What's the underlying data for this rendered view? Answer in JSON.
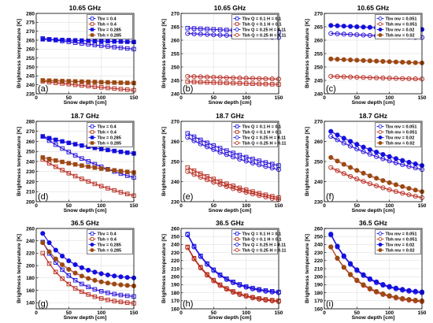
{
  "colors": {
    "tbv": "#1010e0",
    "tbh": "#b02c12",
    "tbh2": "#9a4a10",
    "shade": "#ffb0dc"
  },
  "chart_data": [
    {
      "type": "line",
      "panel": "(a)",
      "title": "10.65 GHz",
      "xlabel": "Snow depth [cm]",
      "ylabel": "Brightness temperature [K]",
      "xlim": [
        0,
        150
      ],
      "ylim": [
        235,
        280
      ],
      "xticks": [
        0,
        50,
        100,
        150
      ],
      "yticks": [
        235,
        240,
        245,
        250,
        255,
        260,
        265,
        270,
        275,
        280
      ],
      "series": [
        {
          "name": "Tbv  = 0.4",
          "pol": "v",
          "marker": "square",
          "filled": false,
          "x": [
            10,
            150
          ],
          "y": [
            266.0,
            260.0
          ]
        },
        {
          "name": "Tbh  = 0.4",
          "pol": "h",
          "marker": "square",
          "filled": false,
          "x": [
            10,
            150
          ],
          "y": [
            242.0,
            237.0
          ]
        },
        {
          "name": "Tbv  = 0.285",
          "pol": "v",
          "marker": "square",
          "filled": true,
          "x": [
            10,
            150
          ],
          "y": [
            265.5,
            264.0
          ]
        },
        {
          "name": "Tbh  = 0.285",
          "pol": "h",
          "marker": "square",
          "filled": true,
          "x": [
            10,
            150
          ],
          "y": [
            242.5,
            241.0
          ]
        }
      ]
    },
    {
      "type": "line",
      "panel": "(b)",
      "title": "10.65 GHz",
      "xlabel": "Snow depth [cm]",
      "ylabel": "Brightness temperature [K]",
      "xlim": [
        0,
        150
      ],
      "ylim": [
        240,
        270
      ],
      "xticks": [
        0,
        50,
        100,
        150
      ],
      "yticks": [
        240,
        245,
        250,
        255,
        260,
        265,
        270
      ],
      "series": [
        {
          "name": "Tbv Q = 0.1 H = 0.1",
          "pol": "v",
          "marker": "square",
          "filled": false,
          "x": [
            10,
            150
          ],
          "y": [
            264.5,
            263.0
          ]
        },
        {
          "name": "Tbh Q = 0.1 H = 0.1",
          "pol": "h",
          "marker": "square",
          "filled": false,
          "x": [
            10,
            150
          ],
          "y": [
            244.5,
            243.5
          ]
        },
        {
          "name": "Tbv Q = 0.25 H = 0.11",
          "pol": "v",
          "marker": "circle",
          "filled": false,
          "x": [
            10,
            150
          ],
          "y": [
            262.5,
            261.0
          ]
        },
        {
          "name": "Tbh Q = 0.25 H = 0.11",
          "pol": "h",
          "marker": "circle",
          "filled": false,
          "x": [
            10,
            150
          ],
          "y": [
            246.5,
            245.5
          ]
        }
      ]
    },
    {
      "type": "line",
      "panel": "(c)",
      "title": "10.65 GHz",
      "xlabel": "Snow depth [cm]",
      "ylabel": "Brightness temperature [K]",
      "xlim": [
        0,
        150
      ],
      "ylim": [
        240,
        270
      ],
      "xticks": [
        0,
        50,
        100,
        150
      ],
      "yticks": [
        240,
        245,
        250,
        255,
        260,
        265,
        270
      ],
      "series": [
        {
          "name": "Tbv  mv = 0.051",
          "pol": "v",
          "marker": "circle",
          "filled": false,
          "x": [
            10,
            150
          ],
          "y": [
            262.5,
            261.0
          ]
        },
        {
          "name": "Tbh  mv = 0.051",
          "pol": "h",
          "marker": "circle",
          "filled": false,
          "x": [
            10,
            150
          ],
          "y": [
            246.5,
            245.5
          ]
        },
        {
          "name": "Tbv  mv = 0.02",
          "pol": "v",
          "marker": "circle",
          "filled": true,
          "x": [
            10,
            150
          ],
          "y": [
            265.5,
            264.0
          ]
        },
        {
          "name": "Tbh  mv = 0.02",
          "pol": "h",
          "marker": "circle",
          "filled": true,
          "x": [
            10,
            150
          ],
          "y": [
            253.0,
            251.5
          ]
        }
      ]
    },
    {
      "type": "line",
      "panel": "(d)",
      "title": "18.7 GHz",
      "xlabel": "Snow depth [cm]",
      "ylabel": "Brightness temperature [K]",
      "xlim": [
        0,
        150
      ],
      "ylim": [
        200,
        280
      ],
      "xticks": [
        0,
        50,
        100,
        150
      ],
      "yticks": [
        200,
        210,
        220,
        230,
        240,
        250,
        260,
        270,
        280
      ],
      "series": [
        {
          "name": "Tbv  = 0.4",
          "pol": "v",
          "marker": "square",
          "filled": false,
          "x": [
            10,
            150
          ],
          "y": [
            265.0,
            224.0
          ]
        },
        {
          "name": "Tbh  = 0.4",
          "pol": "h",
          "marker": "square",
          "filled": false,
          "x": [
            10,
            150
          ],
          "y": [
            242.0,
            206.0
          ]
        },
        {
          "name": "Tbv  = 0.285",
          "pol": "v",
          "marker": "square",
          "filled": true,
          "x": [
            10,
            150
          ],
          "y": [
            265.0,
            248.0
          ]
        },
        {
          "name": "Tbh  = 0.285",
          "pol": "h",
          "marker": "square",
          "filled": true,
          "x": [
            10,
            150
          ],
          "y": [
            244.0,
            229.0
          ]
        }
      ]
    },
    {
      "type": "line",
      "panel": "(e)",
      "title": "18.7 GHz",
      "xlabel": "Snow depth [cm]",
      "ylabel": "Brightness temperature [K]",
      "xlim": [
        0,
        150
      ],
      "ylim": [
        230,
        270
      ],
      "xticks": [
        0,
        50,
        100,
        150
      ],
      "yticks": [
        230,
        240,
        250,
        260,
        270
      ],
      "series": [
        {
          "name": "Tbv Q = 0.1 H = 0.1",
          "pol": "v",
          "marker": "square",
          "filled": false,
          "x": [
            10,
            150
          ],
          "y": [
            264.0,
            248.0
          ]
        },
        {
          "name": "Tbh Q = 0.1 H = 0.1",
          "pol": "h",
          "marker": "square",
          "filled": false,
          "x": [
            10,
            150
          ],
          "y": [
            247.0,
            232.0
          ]
        },
        {
          "name": "Tbv Q = 0.25 H = 0.11",
          "pol": "v",
          "marker": "circle",
          "filled": false,
          "x": [
            10,
            150
          ],
          "y": [
            262.0,
            246.0
          ]
        },
        {
          "name": "Tbh Q = 0.25 H = 0.11",
          "pol": "h",
          "marker": "circle",
          "filled": false,
          "x": [
            10,
            150
          ],
          "y": [
            245.0,
            231.0
          ]
        }
      ]
    },
    {
      "type": "line",
      "panel": "(f)",
      "title": "18.7 GHz",
      "xlabel": "Snow depth [cm]",
      "ylabel": "Brightness temperature [K]",
      "xlim": [
        0,
        150
      ],
      "ylim": [
        230,
        270
      ],
      "xticks": [
        0,
        50,
        100,
        150
      ],
      "yticks": [
        230,
        240,
        250,
        260,
        270
      ],
      "series": [
        {
          "name": "Tbv  mv = 0.051",
          "pol": "v",
          "marker": "circle",
          "filled": false,
          "x": [
            10,
            150
          ],
          "y": [
            262.5,
            246.0
          ]
        },
        {
          "name": "Tbh  mv = 0.051",
          "pol": "h",
          "marker": "circle",
          "filled": false,
          "x": [
            10,
            150
          ],
          "y": [
            247.0,
            232.0
          ]
        },
        {
          "name": "Tbv  mv = 0.02",
          "pol": "v",
          "marker": "circle",
          "filled": true,
          "x": [
            10,
            150
          ],
          "y": [
            265.0,
            248.0
          ]
        },
        {
          "name": "Tbh  mv = 0.02",
          "pol": "h",
          "marker": "circle",
          "filled": true,
          "x": [
            10,
            150
          ],
          "y": [
            252.0,
            235.0
          ]
        }
      ]
    },
    {
      "type": "line",
      "panel": "(g)",
      "title": "36.5 GHz",
      "xlabel": "Snow depth [cm]",
      "ylabel": "Brightness temperature [K]",
      "xlim": [
        0,
        150
      ],
      "ylim": [
        130,
        260
      ],
      "xticks": [
        0,
        50,
        100,
        150
      ],
      "yticks": [
        140,
        160,
        180,
        200,
        220,
        240,
        260
      ],
      "series": [
        {
          "name": "Tbv  = 0.4",
          "pol": "v",
          "marker": "square",
          "filled": false,
          "x": [
            10,
            150
          ],
          "y": [
            238.0,
            150.0
          ]
        },
        {
          "name": "Tbh  = 0.4",
          "pol": "h",
          "marker": "square",
          "filled": false,
          "x": [
            10,
            150
          ],
          "y": [
            220.0,
            139.0
          ]
        },
        {
          "name": "Tbv  = 0.285",
          "pol": "v",
          "marker": "circle",
          "filled": true,
          "x": [
            10,
            150
          ],
          "y": [
            252.0,
            180.0
          ]
        },
        {
          "name": "Tbh  = 0.285",
          "pol": "h",
          "marker": "circle",
          "filled": true,
          "x": [
            10,
            150
          ],
          "y": [
            237.0,
            167.0
          ]
        }
      ]
    },
    {
      "type": "line",
      "panel": "(h)",
      "title": "36.5 GHz",
      "xlabel": "Snow depth [cm]",
      "ylabel": "Brightness temperature [K]",
      "xlim": [
        0,
        150
      ],
      "ylim": [
        160,
        260
      ],
      "xticks": [
        0,
        50,
        100,
        150
      ],
      "yticks": [
        160,
        170,
        180,
        190,
        200,
        210,
        220,
        230,
        240,
        250,
        260
      ],
      "series": [
        {
          "name": "Tbv Q = 0.1 H = 0.1",
          "pol": "v",
          "marker": "square",
          "filled": false,
          "x": [
            10,
            150
          ],
          "y": [
            253.0,
            181.0
          ]
        },
        {
          "name": "Tbh Q = 0.1 H = 0.1",
          "pol": "h",
          "marker": "square",
          "filled": false,
          "x": [
            10,
            150
          ],
          "y": [
            237.0,
            170.0
          ]
        },
        {
          "name": "Tbv Q = 0.25 H = 0.11",
          "pol": "v",
          "marker": "circle",
          "filled": false,
          "x": [
            10,
            150
          ],
          "y": [
            252.0,
            180.0
          ]
        },
        {
          "name": "Tbh Q = 0.25 H = 0.11",
          "pol": "h",
          "marker": "circle",
          "filled": false,
          "x": [
            10,
            150
          ],
          "y": [
            236.0,
            169.0
          ]
        }
      ]
    },
    {
      "type": "line",
      "panel": "(i)",
      "title": "36.5 GHz",
      "xlabel": "Snow depth [cm]",
      "ylabel": "Brightness temperature [K]",
      "xlim": [
        0,
        150
      ],
      "ylim": [
        160,
        260
      ],
      "xticks": [
        0,
        50,
        100,
        150
      ],
      "yticks": [
        160,
        170,
        180,
        190,
        200,
        210,
        220,
        230,
        240,
        250,
        260
      ],
      "series": [
        {
          "name": "Tbv  mv = 0.051",
          "pol": "v",
          "marker": "circle",
          "filled": false,
          "x": [
            10,
            150
          ],
          "y": [
            252.0,
            180.0
          ]
        },
        {
          "name": "Tbh  mv = 0.051",
          "pol": "h",
          "marker": "circle",
          "filled": false,
          "x": [
            10,
            150
          ],
          "y": [
            237.0,
            169.0
          ]
        },
        {
          "name": "Tbv  mv = 0.02",
          "pol": "v",
          "marker": "circle",
          "filled": true,
          "x": [
            10,
            150
          ],
          "y": [
            253.0,
            181.0
          ]
        },
        {
          "name": "Tbh  mv = 0.02",
          "pol": "h",
          "marker": "circle",
          "filled": true,
          "x": [
            10,
            150
          ],
          "y": [
            237.0,
            170.0
          ]
        }
      ]
    }
  ]
}
